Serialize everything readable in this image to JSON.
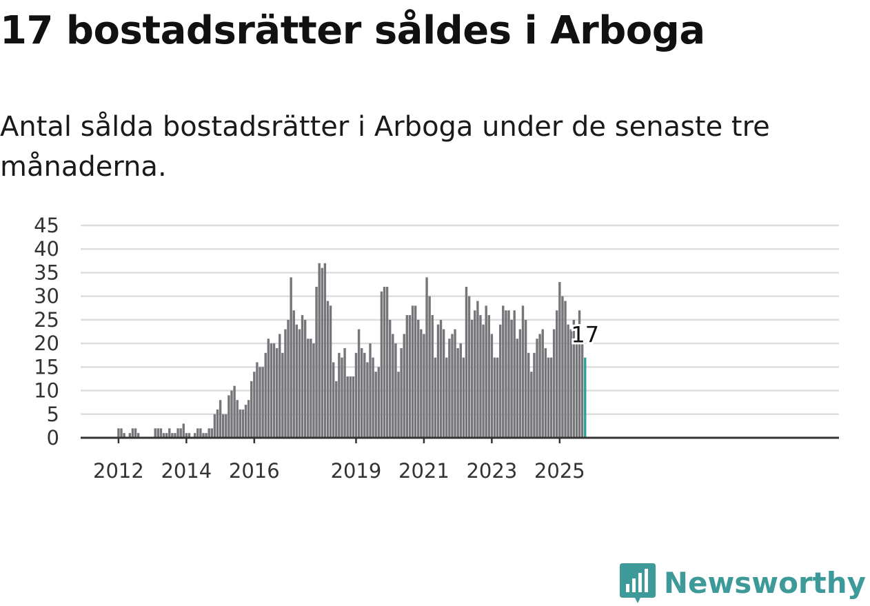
{
  "title": "17 bostadsrätter såldes i Arboga",
  "subtitle": "Antal sålda bostadsrätter i Arboga under de senaste tre månaderna.",
  "brand": {
    "name": "Newsworthy",
    "icon": "newsworthy-logo-icon"
  },
  "colors": {
    "bar": "#75757a",
    "highlight": "#2ba39b",
    "grid": "#dddddd",
    "axis": "#333333",
    "brand": "#3d9a98"
  },
  "chart_data": {
    "type": "bar",
    "start": "2011-01",
    "y_ticks": [
      0,
      5,
      10,
      15,
      20,
      25,
      30,
      35,
      40,
      45
    ],
    "ylim": [
      0,
      45
    ],
    "x_ticks": [
      {
        "label": "2012",
        "index": 12
      },
      {
        "label": "2014",
        "index": 36
      },
      {
        "label": "2016",
        "index": 60
      },
      {
        "label": "2019",
        "index": 96
      },
      {
        "label": "2021",
        "index": 120
      },
      {
        "label": "2023",
        "index": 144
      },
      {
        "label": "2025",
        "index": 168
      }
    ],
    "values": [
      0,
      0,
      0,
      0,
      0,
      0,
      0,
      0,
      0,
      0,
      0,
      0,
      2,
      2,
      1,
      0,
      1,
      2,
      2,
      1,
      0,
      0,
      0,
      0,
      0,
      2,
      2,
      2,
      1,
      1,
      2,
      1,
      1,
      2,
      2,
      3,
      1,
      1,
      0,
      1,
      2,
      2,
      1,
      1,
      2,
      2,
      5,
      6,
      8,
      5,
      5,
      9,
      10,
      11,
      8,
      6,
      6,
      7,
      8,
      12,
      14,
      16,
      15,
      15,
      18,
      21,
      20,
      20,
      19,
      22,
      18,
      23,
      25,
      34,
      27,
      24,
      23,
      26,
      25,
      21,
      21,
      20,
      32,
      37,
      36,
      37,
      29,
      28,
      16,
      12,
      18,
      17,
      19,
      13,
      13,
      13,
      18,
      23,
      19,
      18,
      16,
      20,
      17,
      14,
      15,
      31,
      32,
      32,
      25,
      22,
      20,
      14,
      19,
      22,
      26,
      26,
      28,
      28,
      25,
      23,
      22,
      34,
      30,
      26,
      17,
      24,
      25,
      23,
      17,
      21,
      22,
      23,
      19,
      20,
      17,
      32,
      30,
      25,
      27,
      29,
      26,
      24,
      28,
      26,
      22,
      17,
      17,
      24,
      28,
      27,
      27,
      25,
      27,
      21,
      23,
      28,
      25,
      18,
      14,
      18,
      21,
      22,
      23,
      19,
      17,
      17,
      23,
      27,
      33,
      30,
      29,
      24,
      23,
      25,
      20,
      27,
      20,
      17
    ],
    "highlight_label": "17"
  }
}
